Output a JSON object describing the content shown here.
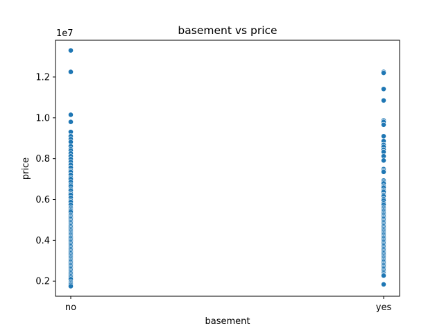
{
  "chart_data": {
    "type": "scatter",
    "title": "basement vs price",
    "xlabel": "basement",
    "ylabel": "price",
    "y_offset_label": "1e7",
    "categories": [
      "no",
      "yes"
    ],
    "ylim": [
      1.26,
      13.8
    ],
    "yticks": [
      2,
      4,
      6,
      8,
      10,
      12
    ],
    "ytick_labels": [
      "0.2",
      "0.4",
      "0.6",
      "0.8",
      "1.0",
      "1.2"
    ],
    "grid": false,
    "point_color": "#1f77b4",
    "series": [
      {
        "category": "no",
        "values": [
          13.3,
          12.25,
          10.15,
          9.8,
          9.31,
          9.1,
          8.96,
          8.82,
          8.61,
          8.47,
          8.4,
          8.26,
          8.12,
          7.98,
          7.84,
          7.7,
          7.56,
          7.42,
          7.35,
          7.21,
          7.07,
          7.0,
          6.86,
          6.72,
          6.65,
          6.51,
          6.44,
          6.3,
          6.23,
          6.09,
          5.95,
          5.88,
          5.74,
          5.6,
          5.53,
          5.46,
          5.39,
          5.25,
          5.18,
          5.11,
          5.04,
          4.97,
          4.9,
          4.83,
          4.76,
          4.69,
          4.62,
          4.55,
          4.48,
          4.41,
          4.34,
          4.27,
          4.2,
          4.13,
          4.06,
          3.99,
          3.92,
          3.85,
          3.78,
          3.71,
          3.64,
          3.57,
          3.5,
          3.43,
          3.36,
          3.29,
          3.22,
          3.15,
          3.08,
          3.01,
          2.94,
          2.87,
          2.8,
          2.73,
          2.66,
          2.59,
          2.52,
          2.45,
          2.38,
          2.31,
          2.24,
          2.17,
          2.1,
          1.96,
          1.89,
          1.82,
          1.75
        ]
      },
      {
        "category": "yes",
        "values": [
          12.25,
          12.2,
          11.41,
          10.85,
          9.87,
          9.8,
          9.66,
          9.1,
          8.86,
          8.68,
          8.58,
          8.44,
          8.33,
          8.12,
          7.91,
          7.49,
          7.42,
          7.35,
          6.93,
          6.86,
          6.79,
          6.65,
          6.58,
          6.44,
          6.37,
          6.23,
          6.16,
          6.02,
          5.95,
          5.81,
          5.74,
          5.6,
          5.53,
          5.46,
          5.39,
          5.32,
          5.25,
          5.18,
          5.11,
          5.04,
          4.97,
          4.9,
          4.83,
          4.76,
          4.69,
          4.62,
          4.55,
          4.48,
          4.41,
          4.34,
          4.27,
          4.2,
          4.13,
          4.06,
          3.99,
          3.92,
          3.85,
          3.78,
          3.71,
          3.64,
          3.57,
          3.5,
          3.43,
          3.36,
          3.29,
          3.22,
          3.15,
          3.08,
          3.01,
          2.94,
          2.87,
          2.8,
          2.73,
          2.66,
          2.59,
          2.52,
          2.45,
          2.38,
          2.31,
          2.27,
          1.84
        ]
      }
    ]
  }
}
